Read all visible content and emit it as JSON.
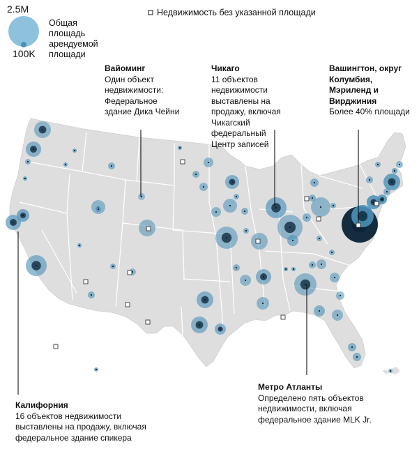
{
  "legend": {
    "max_label": "2.5M",
    "min_label": "100K",
    "size_title": "Общая площадь арендуемой площади",
    "no_area_label": "Недвижимость без указанной площади"
  },
  "annotations": {
    "wyoming": {
      "title": "Вайоминг",
      "body": "Один объект недвижимости: Федеральное здание Дика Чейни"
    },
    "chicago": {
      "title": "Чикаго",
      "body": "11 объектов недвижимости выставлены на продажу, включая Чикагский федеральный Центр записей"
    },
    "dc": {
      "title": "Вашингтон, округ Колумбия, Мэриленд и Вирджиния",
      "body": "Более 40% площади"
    },
    "atlanta": {
      "title": "Метро Атланты",
      "body": "Определено пять объектов недвижимости, включая федеральное здание MLK Jr."
    },
    "california": {
      "title": "Калифорния",
      "body": "16 объектов недвижимости выставлены на продажу, включая федеральное здание спикера"
    }
  },
  "colors": {
    "land": "#dedede",
    "state_border": "#ffffff",
    "bubble": "#4a90b8",
    "bubble_dark": "#0a2236",
    "text": "#111111"
  }
}
